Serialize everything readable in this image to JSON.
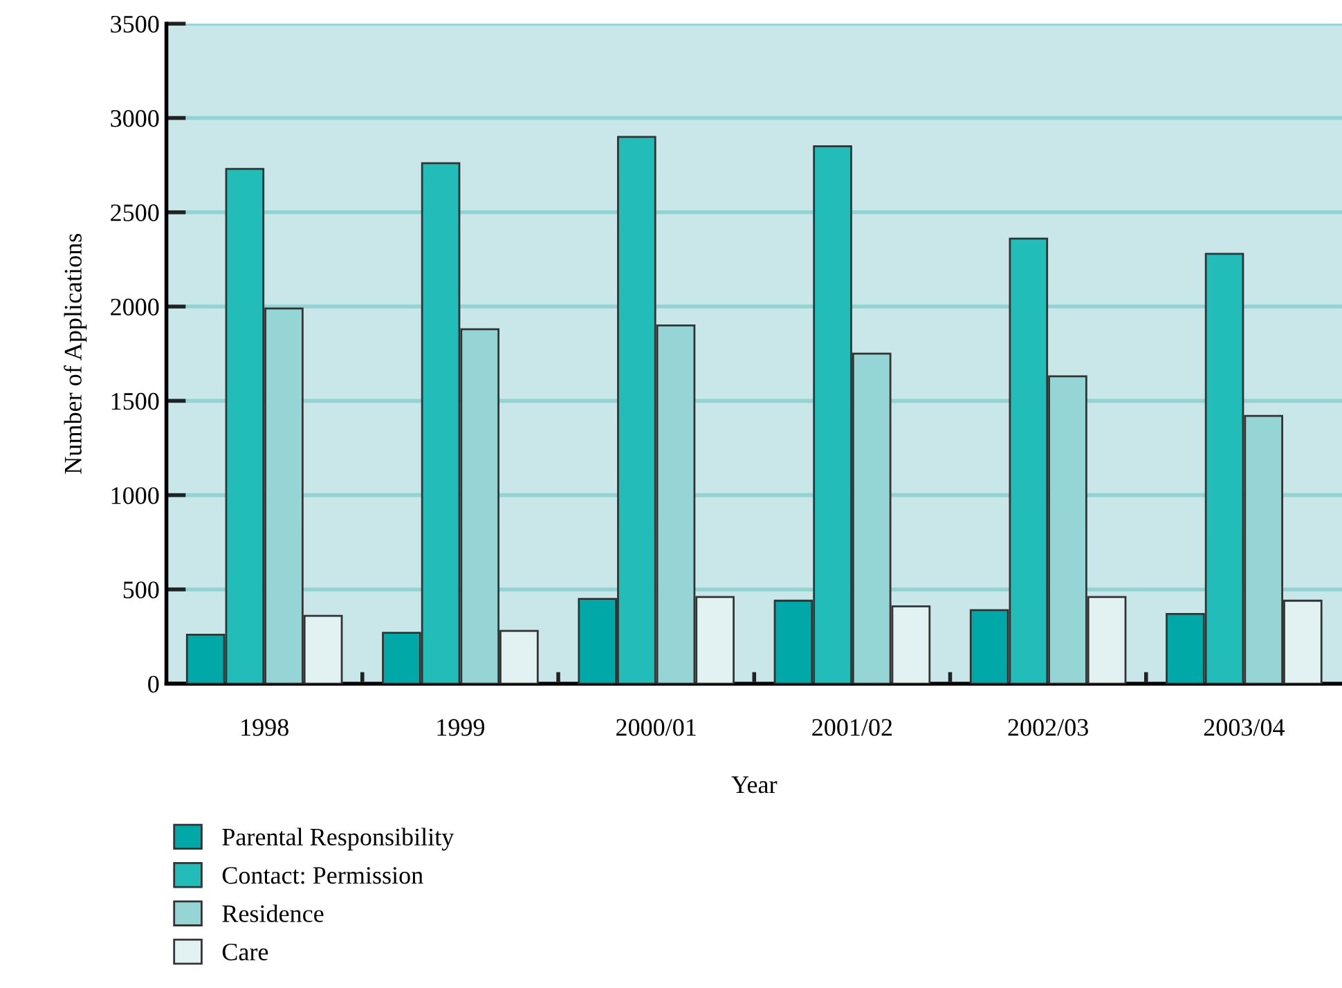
{
  "chart_data": {
    "type": "bar",
    "xlabel": "Year",
    "ylabel": "Number of Applications",
    "categories": [
      "1998",
      "1999",
      "2000/01",
      "2001/02",
      "2002/03",
      "2003/04"
    ],
    "series": [
      {
        "name": "Parental Responsibility",
        "color": "#00a8a8",
        "values": [
          260,
          270,
          450,
          440,
          390,
          370
        ]
      },
      {
        "name": "Contact: Permission",
        "color": "#22bdb8",
        "values": [
          2730,
          2760,
          2900,
          2850,
          2360,
          2280
        ]
      },
      {
        "name": "Residence",
        "color": "#95d5d5",
        "values": [
          1990,
          1880,
          1900,
          1750,
          1630,
          1420
        ]
      },
      {
        "name": "Care",
        "color": "#e2f2f2",
        "values": [
          360,
          280,
          460,
          410,
          460,
          440
        ]
      }
    ],
    "ylim": [
      0,
      3500
    ],
    "yticks": [
      0,
      500,
      1000,
      1500,
      2000,
      2500,
      3000,
      3500
    ],
    "grid": "y",
    "legend": "bottom left"
  }
}
